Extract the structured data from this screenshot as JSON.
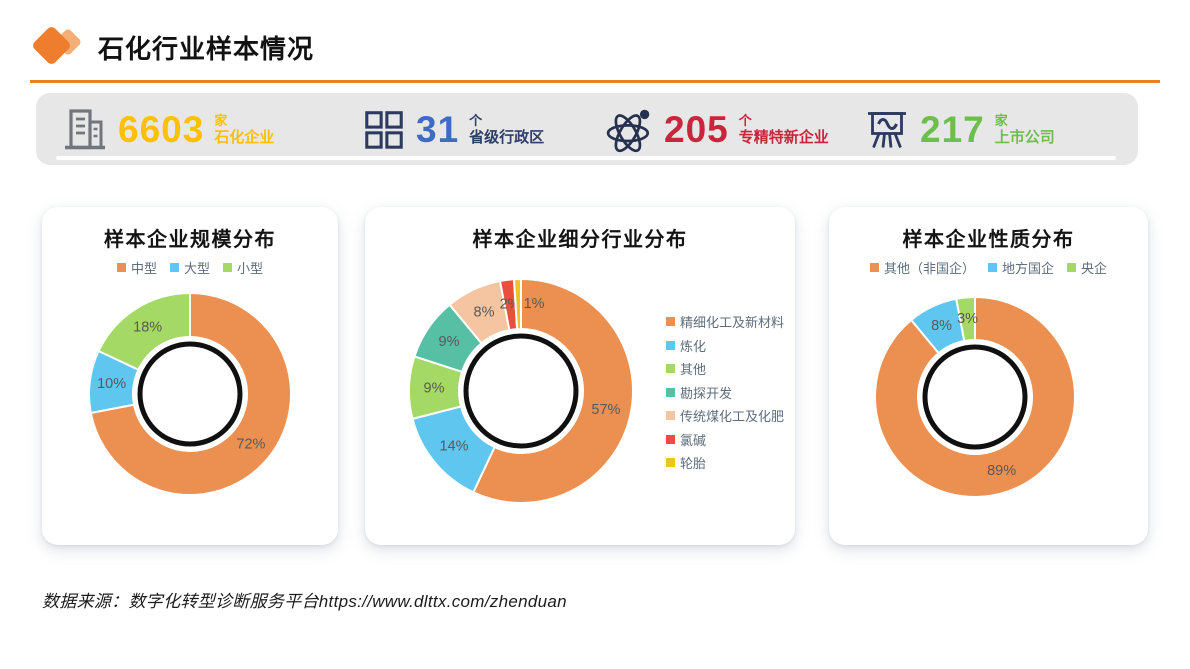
{
  "header": {
    "title": "石化行业样本情况"
  },
  "stats": [
    {
      "icon": "building-icon",
      "value": "6603",
      "unit": "家",
      "label": "石化企业",
      "value_color": "#FFC000",
      "label_color": "#FFC000"
    },
    {
      "icon": "grid-icon",
      "value": "31",
      "unit": "个",
      "label": "省级行政区",
      "value_color": "#3D6BC6",
      "label_color": "#2F4066"
    },
    {
      "icon": "atom-icon",
      "value": "205",
      "unit": "个",
      "label": "专精特新企业",
      "value_color": "#C7273C",
      "label_color": "#C7273C"
    },
    {
      "icon": "board-icon",
      "value": "217",
      "unit": "家",
      "label": "上市公司",
      "value_color": "#6EBE4C",
      "label_color": "#6EBE4C"
    }
  ],
  "chart_data": [
    {
      "type": "pie",
      "title": "样本企业规模分布",
      "donut": true,
      "legend_position": "top",
      "slices": [
        {
          "label": "中型",
          "value": 72,
          "color": "#EC9051"
        },
        {
          "label": "大型",
          "value": 10,
          "color": "#5FC6EF"
        },
        {
          "label": "小型",
          "value": 18,
          "color": "#A3D964"
        }
      ]
    },
    {
      "type": "pie",
      "title": "样本企业细分行业分布",
      "donut": true,
      "legend_position": "right",
      "slices": [
        {
          "label": "精细化工及新材料",
          "value": 57,
          "color": "#EC9051"
        },
        {
          "label": "炼化",
          "value": 14,
          "color": "#5FC6EF"
        },
        {
          "label": "其他",
          "value": 9,
          "color": "#A3D964"
        },
        {
          "label": "勘探开发",
          "value": 9,
          "color": "#57BFA3"
        },
        {
          "label": "传统煤化工及化肥",
          "value": 8,
          "color": "#F4C5A0"
        },
        {
          "label": "氯碱",
          "value": 2,
          "color": "#E8503C"
        },
        {
          "label": "轮胎",
          "value": 1,
          "color": "#EDC327"
        }
      ]
    },
    {
      "type": "pie",
      "title": "样本企业性质分布",
      "donut": true,
      "legend_position": "top",
      "slices": [
        {
          "label": "其他（非国企）",
          "value": 89,
          "color": "#EC9051"
        },
        {
          "label": "地方国企",
          "value": 8,
          "color": "#5FC6EF"
        },
        {
          "label": "央企",
          "value": 3,
          "color": "#A3D964"
        }
      ]
    }
  ],
  "footer": {
    "source": "数据来源：数字化转型诊断服务平台https://www.dlttx.com/zhenduan"
  }
}
